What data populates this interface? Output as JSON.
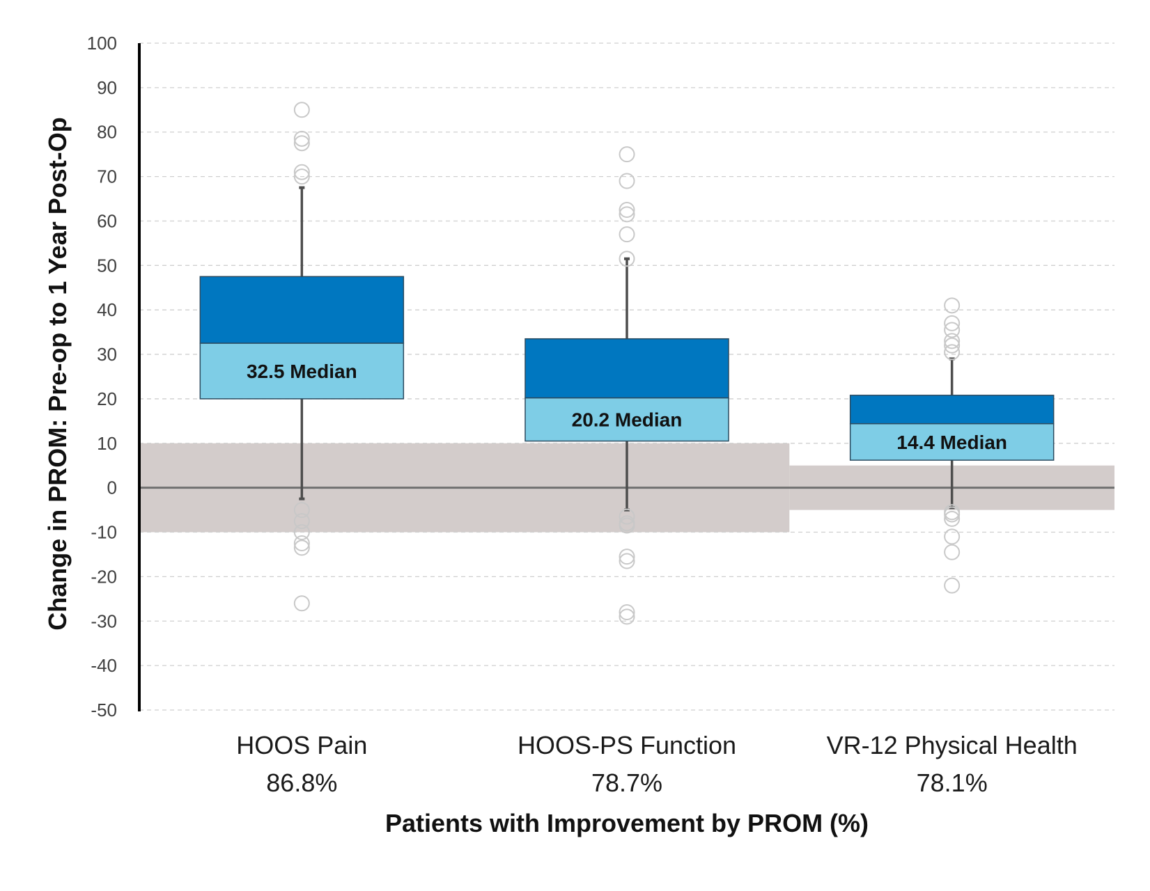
{
  "chart_data": {
    "type": "boxplot",
    "title": "",
    "xlabel": "Patients with Improvement by PROM (%)",
    "ylabel": "Change in PROM: Pre-op to 1 Year Post-Op",
    "ylim": [
      -50,
      100
    ],
    "yticks": [
      100,
      90,
      80,
      70,
      60,
      50,
      40,
      30,
      20,
      10,
      0,
      -10,
      -20,
      -30,
      -40,
      -50
    ],
    "grid": true,
    "median_suffix": " Median",
    "colors": {
      "upper_box": "#0077c0",
      "lower_box": "#7ecde6",
      "box_edge": "#2b4a5f",
      "whisker": "#4d4d4d",
      "outlier": "#c8c8c8",
      "mcid_band": "#d3cccb",
      "zero_line": "#707070",
      "grid": "#cfcfcf",
      "axis": "#000000"
    },
    "categories": [
      {
        "name": "HOOS Pain",
        "pct": "86.8%",
        "q1": 20,
        "median": 32.5,
        "median_label": "32.5",
        "q3": 47.5,
        "whisker_low": -2.5,
        "whisker_high": 67.5,
        "outliers": [
          85,
          78.5,
          77.5,
          71,
          70,
          -5,
          -7.5,
          -10,
          -12.5,
          -13.5,
          -26
        ],
        "mcid": [
          -10,
          10
        ]
      },
      {
        "name": "HOOS-PS Function",
        "pct": "78.7%",
        "q1": 10.5,
        "median": 20.2,
        "median_label": "20.2",
        "q3": 33.5,
        "whisker_low": -5,
        "whisker_high": 51.5,
        "outliers": [
          75,
          69,
          62.5,
          61.5,
          57,
          51.5,
          -6.5,
          -8,
          -8.5,
          -15.5,
          -16.5,
          -28,
          -29
        ],
        "mcid": [
          -10,
          10
        ]
      },
      {
        "name": "VR-12 Physical Health",
        "pct": "78.1%",
        "q1": 6.2,
        "median": 14.4,
        "median_label": "14.4",
        "q3": 20.8,
        "whisker_low": -4.5,
        "whisker_high": 29,
        "outliers": [
          41,
          37,
          35.5,
          33,
          32,
          30.5,
          -5.5,
          -6,
          -7,
          -11,
          -14.5,
          -22
        ],
        "mcid": [
          -5,
          5
        ]
      }
    ]
  }
}
